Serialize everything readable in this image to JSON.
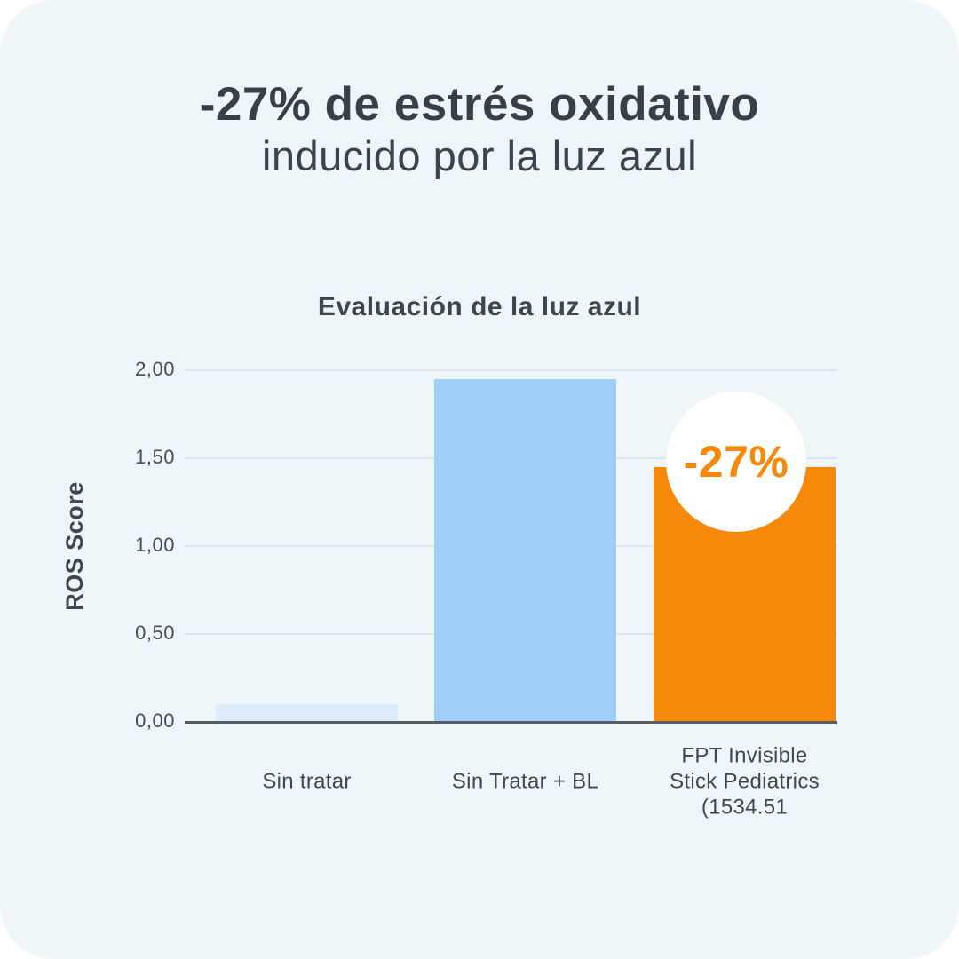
{
  "page": {
    "background_color": "#FFFFFF",
    "panel_color": "#EFF6FA"
  },
  "header": {
    "title_line1": "-27% de estrés oxidativo",
    "title_line2": "inducido por la luz azul"
  },
  "colors": {
    "title_text": "#373F48",
    "axis_text": "#454D57",
    "gridline": "#DCE3E9",
    "baseline": "#565D65",
    "accent_orange": "#F7890A",
    "accent_blue": "#A0CFFB",
    "accent_pale_blue": "#DFECFB"
  },
  "chart_data": {
    "type": "bar",
    "title": "Evaluación de la luz azul",
    "xlabel": "",
    "ylabel": "ROS Score",
    "categories": [
      "Sin tratar",
      "Sin Tratar + BL",
      "FPT Invisible\nStick Pediatrics\n(1534.51"
    ],
    "values": [
      0.1,
      1.95,
      1.45
    ],
    "bar_colors": [
      "#DFECFB",
      "#A0CFFB",
      "#F7890A"
    ],
    "ylim": [
      0,
      2.0
    ],
    "ytick_labels": [
      "0,00",
      "0,50",
      "1,00",
      "1,50",
      "2,00"
    ],
    "ytick_values": [
      0,
      0.5,
      1.0,
      1.5,
      2.0
    ],
    "grid": true,
    "legend": false,
    "annotation": {
      "text": "-27%",
      "target_category": "FPT Invisible Stick Pediatrics (1534.51",
      "style": "white-circle-badge",
      "text_color": "#F7890A"
    }
  }
}
